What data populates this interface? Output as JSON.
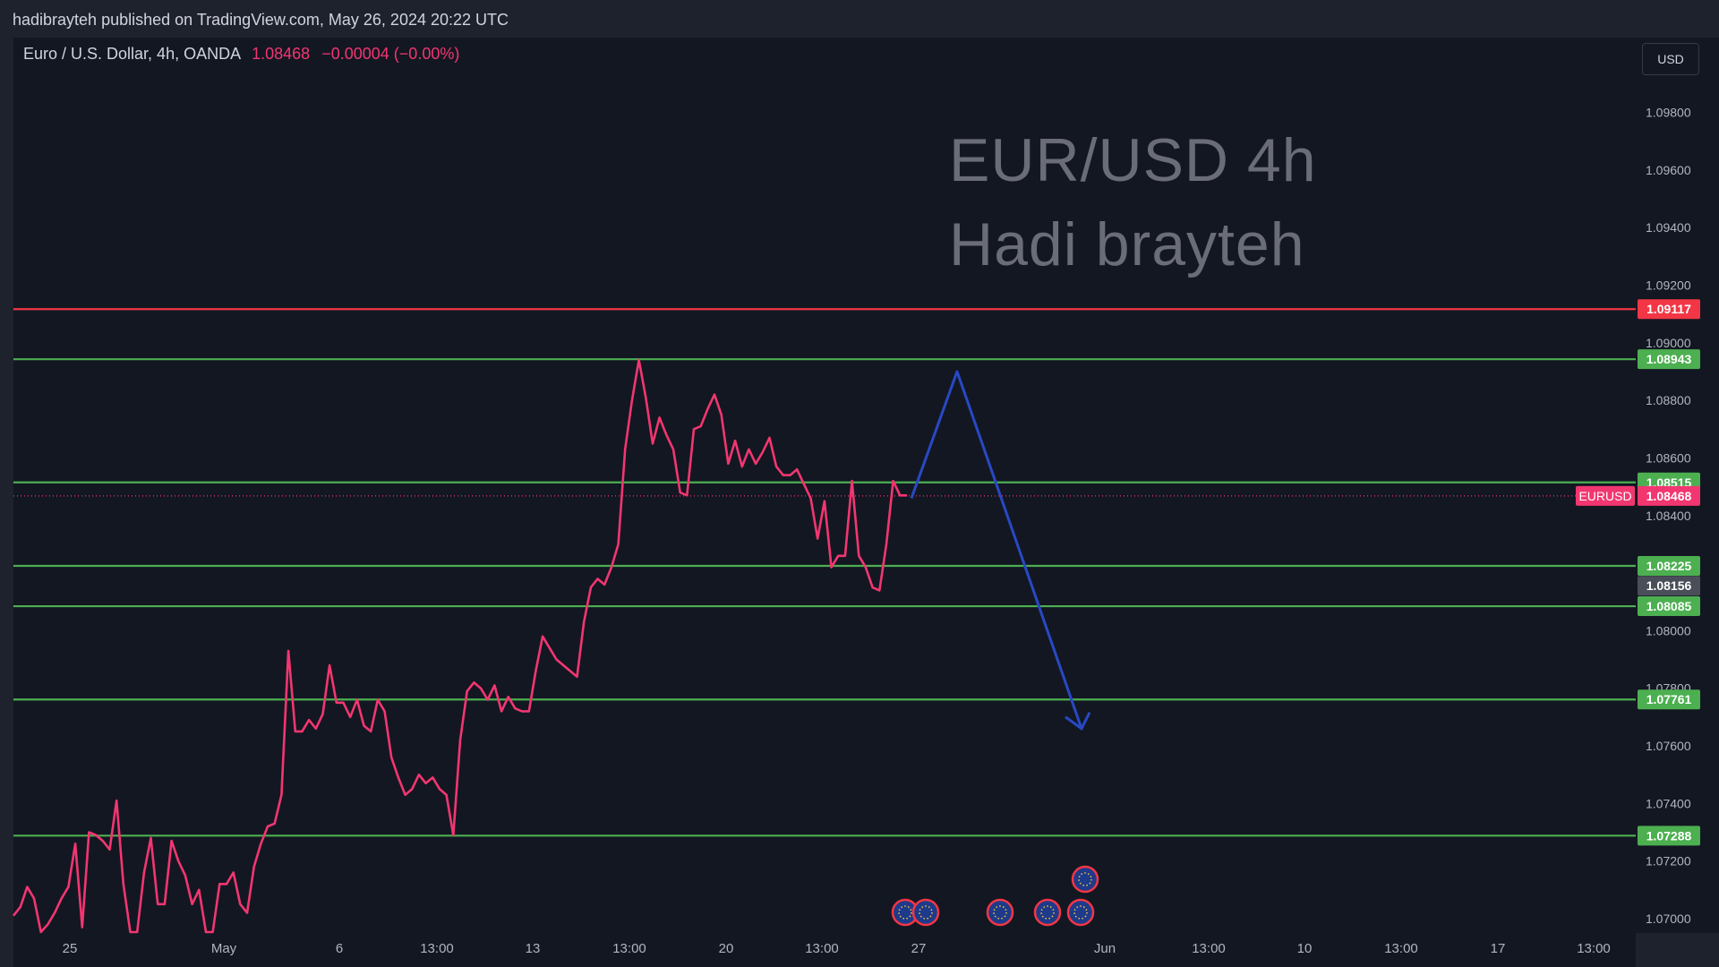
{
  "header": {
    "published": "hadibrayteh published on TradingView.com, May 26, 2024 20:22 UTC"
  },
  "symbol": {
    "name": "Euro / U.S. Dollar, 4h, OANDA",
    "price": "1.08468",
    "change": "−0.00004 (−0.00%)"
  },
  "currency_button": "USD",
  "watermark": {
    "line1": "EUR/USD 4h",
    "line2": "Hadi brayteh"
  },
  "colors": {
    "price_line": "#f23670",
    "support": "#4caf50",
    "resistance": "#f23645",
    "arrow": "#2849c4",
    "background": "#131722"
  },
  "chart_data": {
    "type": "line",
    "title": "",
    "ylim": [
      1.0695,
      1.1006
    ],
    "y_ticks": [
      "1.09800",
      "1.09600",
      "1.09400",
      "1.09200",
      "1.09000",
      "1.08800",
      "1.08600",
      "1.08400",
      "1.08000",
      "1.07800",
      "1.07600",
      "1.07400",
      "1.07200",
      "1.07000"
    ],
    "x_ticks": [
      "25",
      "May",
      "6",
      "13:00",
      "13",
      "13:00",
      "20",
      "13:00",
      "27",
      "Jun",
      "13:00",
      "10",
      "13:00",
      "17",
      "13:00"
    ],
    "series": [
      {
        "values": [
          1.0701,
          1.0704,
          1.0711,
          1.0707,
          1.0691,
          1.0698,
          1.0702,
          1.0707,
          1.0711,
          1.0726,
          1.0697,
          1.073,
          1.0729,
          1.0727,
          1.0724,
          1.0741,
          1.0712,
          1.0685,
          1.0694,
          1.0716,
          1.0728,
          1.0705,
          1.0705,
          1.0727,
          1.072,
          1.0715,
          1.0705,
          1.071,
          1.0692,
          1.068,
          1.0712,
          1.0712,
          1.0716,
          1.0705,
          1.0702,
          1.0718,
          1.0726,
          1.0732,
          1.0733,
          1.0743,
          1.0793,
          1.0765,
          1.0765,
          1.0769,
          1.0766,
          1.0771,
          1.0788,
          1.0775,
          1.0775,
          1.077,
          1.0776,
          1.0767,
          1.0765,
          1.0776,
          1.0772,
          1.0756,
          1.0749,
          1.0743,
          1.0745,
          1.075,
          1.0747,
          1.0749,
          1.0745,
          1.0743,
          1.0729,
          1.0762,
          1.0779,
          1.0782,
          1.078,
          1.0776,
          1.0781,
          1.0772,
          1.0777,
          1.0773,
          1.0772,
          1.0772,
          1.0786,
          1.0798,
          1.0794,
          1.079,
          1.0788,
          1.0786,
          1.0784,
          1.0803,
          1.0815,
          1.0818,
          1.0816,
          1.0822,
          1.083,
          1.0863,
          1.088,
          1.0894,
          1.0881,
          1.0865,
          1.0874,
          1.0868,
          1.0863,
          1.0848,
          1.0847,
          1.087,
          1.0871,
          1.0877,
          1.0882,
          1.0875,
          1.0858,
          1.0866,
          1.0857,
          1.0863,
          1.0858,
          1.0862,
          1.0867,
          1.0857,
          1.0854,
          1.0854,
          1.0856,
          1.0851,
          1.0846,
          1.0832,
          1.0845,
          1.0822,
          1.0826,
          1.0826,
          1.0852,
          1.0826,
          1.0822,
          1.0815,
          1.0814,
          1.083,
          1.0852,
          1.0847,
          1.0847
        ]
      }
    ],
    "horizontal_levels": [
      {
        "value": 1.09117,
        "label": "1.09117",
        "kind": "resistance"
      },
      {
        "value": 1.08943,
        "label": "1.08943",
        "kind": "support"
      },
      {
        "value": 1.08515,
        "label": "1.08515",
        "kind": "support"
      },
      {
        "value": 1.08225,
        "label": "1.08225",
        "kind": "support"
      },
      {
        "value": 1.08085,
        "label": "1.08085",
        "kind": "support"
      },
      {
        "value": 1.07761,
        "label": "1.07761",
        "kind": "support"
      },
      {
        "value": 1.07288,
        "label": "1.07288",
        "kind": "support"
      }
    ],
    "last_price": {
      "value": 1.08468,
      "label": "1.08468",
      "symbol": "EURUSD"
    },
    "marker": {
      "value": 1.08156,
      "label": "1.08156"
    },
    "projection_path": [
      1.0846,
      1.089,
      1.0766
    ]
  }
}
